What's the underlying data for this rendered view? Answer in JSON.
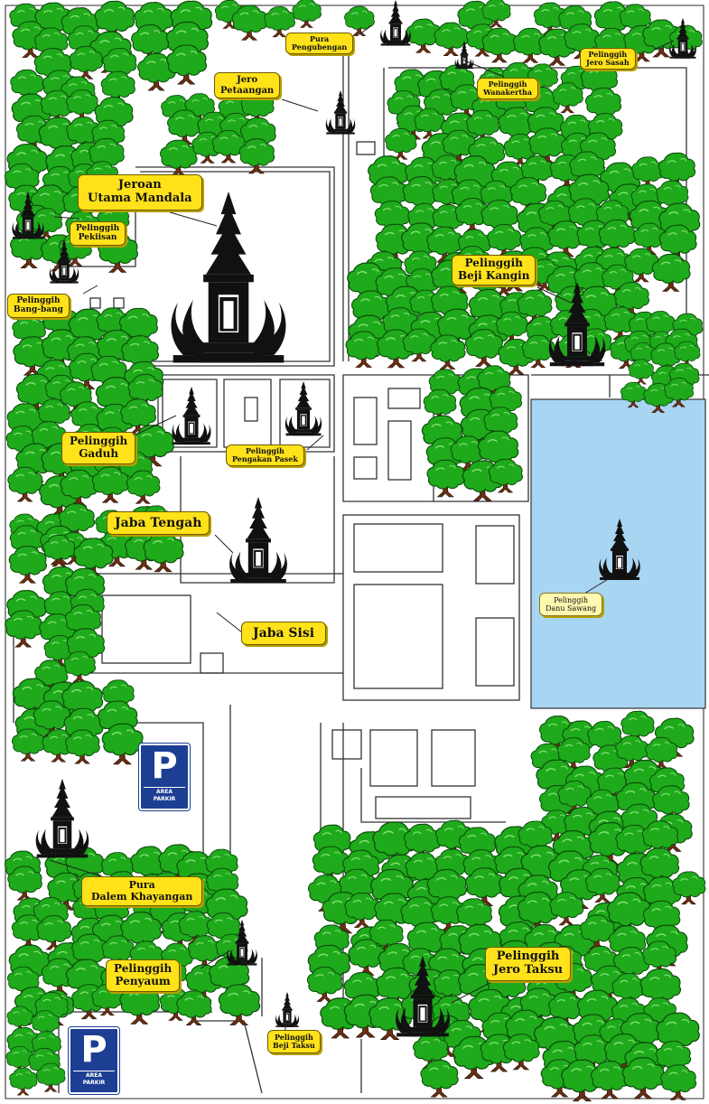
{
  "colors": {
    "tree_canopy": "#1faa1c",
    "tree_trunk": "#6b2f12",
    "temple": "#111111",
    "pond": "#a8d5f2",
    "label": "#ffe21a",
    "parking": "#1c3f94"
  },
  "icons": {
    "temple": "temple-shrine-icon",
    "gate": "split-gate-icon",
    "tree": "tree-icon",
    "parking": "parking-sign-icon"
  },
  "labels": {
    "pura_pengubengan": [
      "Pura",
      "Pengubengan"
    ],
    "jero_petaangan": [
      "Jero",
      "Petaangan"
    ],
    "pelinggih_wanakertha": [
      "Pelinggih",
      "Wanakertha"
    ],
    "pelinggih_jero_sasah": [
      "Pelinggih",
      "Jero Sasah"
    ],
    "jeroan_utama_mandala": [
      "Jeroan",
      "Utama Mandala"
    ],
    "pelinggih_pekiisan": [
      "Pelinggih",
      "Pekiisan"
    ],
    "pelinggih_bang_bang": [
      "Pelinggih",
      "Bang-bang"
    ],
    "pelinggih_beji_kangin": [
      "Pelinggih",
      "Beji Kangin"
    ],
    "pelinggih_gaduh": [
      "Pelinggih",
      "Gaduh"
    ],
    "pelinggih_pengakan_pasek": [
      "Pelinggih",
      "Pengakan Pasek"
    ],
    "jaba_tengah": [
      "Jaba Tengah"
    ],
    "jaba_sisi": [
      "Jaba Sisi"
    ],
    "pelinggih_danu_sawang": [
      "Pelinggih",
      "Danu Sawang"
    ],
    "pura_dalem_khayangan": [
      "Pura",
      "Dalem Khayangan"
    ],
    "pelinggih_penyaum": [
      "Pelinggih",
      "Penyaum"
    ],
    "pelinggih_jero_taksu": [
      "Pelinggih",
      "Jero Taksu"
    ],
    "pelinggih_beji_taksu": [
      "Pelinggih",
      "Beji Taksu"
    ]
  },
  "parking": {
    "symbol": "P",
    "area_text": "AREA",
    "parkir_text": "PARKIR"
  }
}
